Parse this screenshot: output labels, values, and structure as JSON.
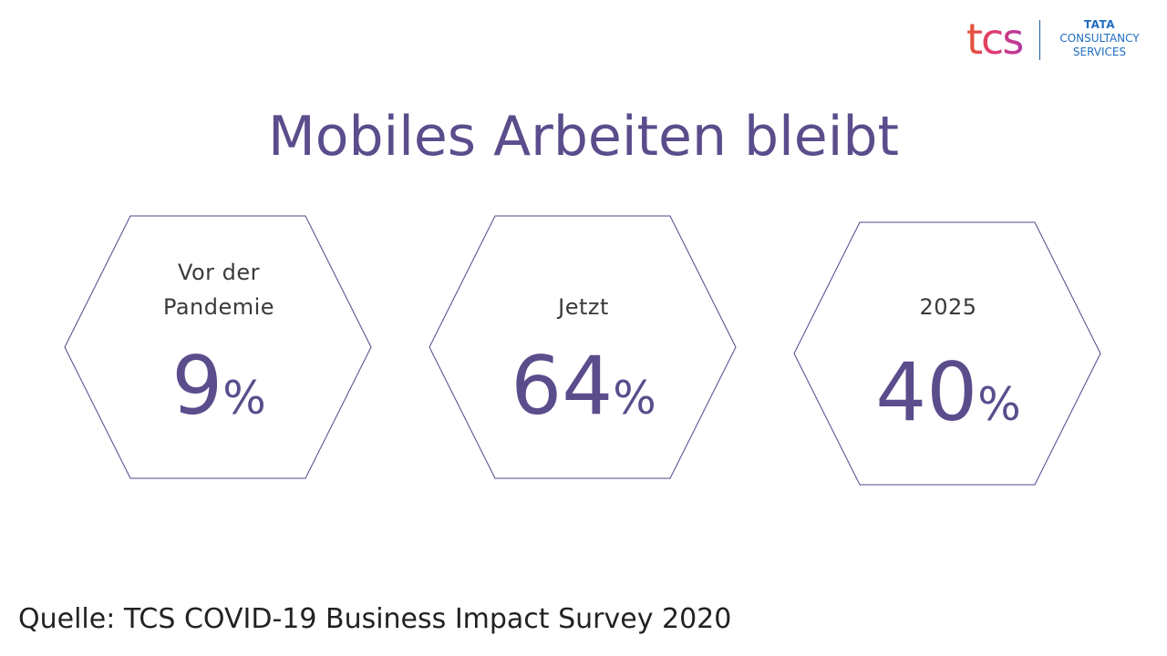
{
  "logo": {
    "mark": "tcs",
    "line1": "TATA",
    "line2": "CONSULTANCY",
    "line3": "SERVICES"
  },
  "title": "Mobiles Arbeiten bleibt",
  "cards": [
    {
      "label_line1": "Vor der",
      "label_line2": "Pandemie",
      "value": "9",
      "unit": "%"
    },
    {
      "label_line1": "",
      "label_line2": "Jetzt",
      "value": "64",
      "unit": "%"
    },
    {
      "label_line1": "",
      "label_line2": "2025",
      "value": "40",
      "unit": "%"
    }
  ],
  "source": "Quelle: TCS COVID-19 Business Impact Survey 2020",
  "colors": {
    "accent": "#5b4d8c",
    "hex_stroke": "#4a4a8a",
    "logo_blue": "#1f6dc2"
  }
}
